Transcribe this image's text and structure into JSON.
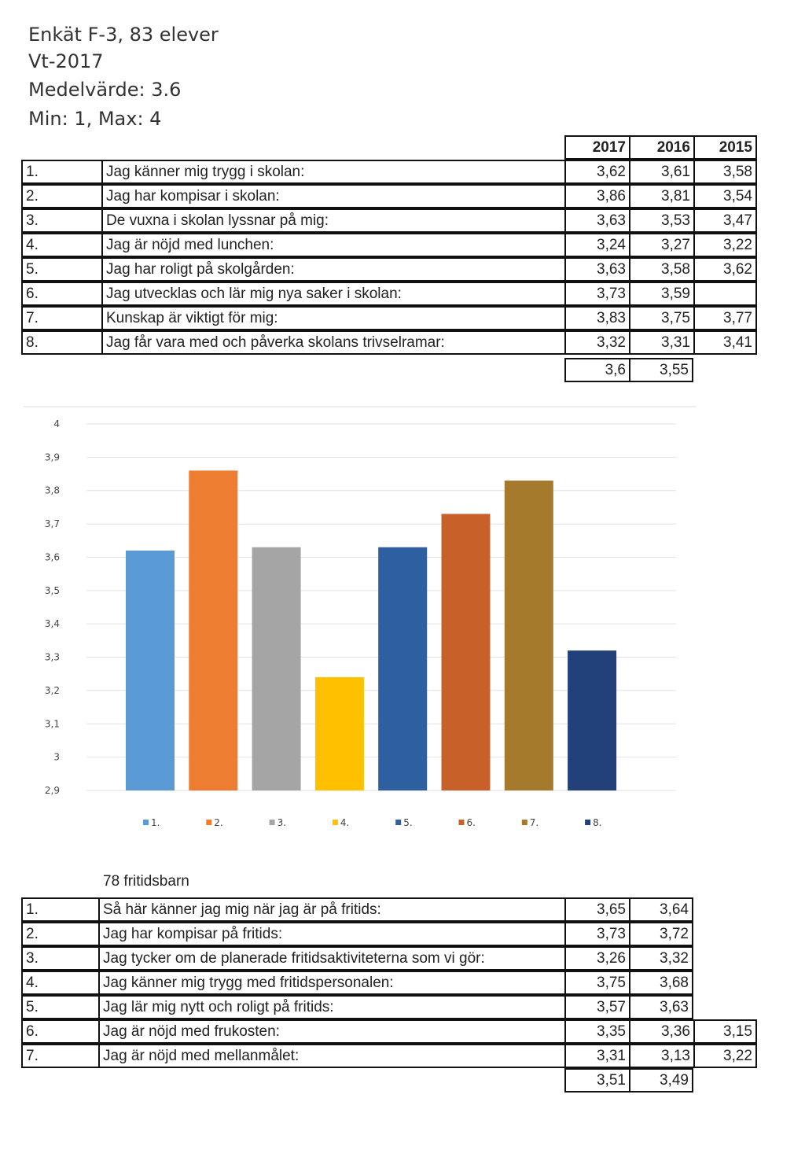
{
  "header": {
    "line1": "Enkät F-3, 83 elever",
    "line2": "Vt-2017",
    "line3": "Medelvärde: 3.6",
    "line4": "Min: 1, Max: 4"
  },
  "table1": {
    "years": [
      "2017",
      "2016",
      "2015"
    ],
    "rows": [
      {
        "n": "1.",
        "q": "Jag känner mig trygg i skolan:",
        "v2017": "3,62",
        "v2016": "3,61",
        "v2015": "3,58"
      },
      {
        "n": "2.",
        "q": "Jag har kompisar i skolan:",
        "v2017": "3,86",
        "v2016": "3,81",
        "v2015": "3,54"
      },
      {
        "n": "3.",
        "q": "De vuxna i skolan lyssnar på mig:",
        "v2017": "3,63",
        "v2016": "3,53",
        "v2015": "3,47"
      },
      {
        "n": "4.",
        "q": "Jag är nöjd med lunchen:",
        "v2017": "3,24",
        "v2016": "3,27",
        "v2015": "3,22"
      },
      {
        "n": "5.",
        "q": "Jag har roligt på skolgården:",
        "v2017": "3,63",
        "v2016": "3,58",
        "v2015": "3,62"
      },
      {
        "n": "6.",
        "q": "Jag utvecklas och lär mig nya saker i skolan:",
        "v2017": "3,73",
        "v2016": "3,59",
        "v2015": ""
      },
      {
        "n": "7.",
        "q": "Kunskap är viktigt för mig:",
        "v2017": "3,83",
        "v2016": "3,75",
        "v2015": "3,77"
      },
      {
        "n": "8.",
        "q": "Jag får vara med och påverka skolans trivselramar:",
        "v2017": "3,32",
        "v2016": "3,31",
        "v2015": "3,41"
      }
    ],
    "avg": {
      "v2017": "3,6",
      "v2016": "3,55"
    }
  },
  "chart_data": {
    "type": "bar",
    "categories": [
      "1.",
      "2.",
      "3.",
      "4.",
      "5.",
      "6.",
      "7.",
      "8."
    ],
    "values": [
      3.62,
      3.86,
      3.63,
      3.24,
      3.63,
      3.73,
      3.83,
      3.32
    ],
    "colors": [
      "#5b9bd5",
      "#ed7d31",
      "#a5a5a5",
      "#ffc000",
      "#2e5fa0",
      "#c8602a",
      "#a67a2c",
      "#22407a"
    ],
    "ylim": [
      2.9,
      4
    ],
    "yticks": [
      "4",
      "3,9",
      "3,8",
      "3,7",
      "3,6",
      "3,5",
      "3,4",
      "3,3",
      "3,2",
      "3,1",
      "3",
      "2,9"
    ],
    "legend_position": "bottom",
    "grid": true
  },
  "table2": {
    "caption": "78 fritidsbarn",
    "rows": [
      {
        "n": "1.",
        "q": "Så här känner jag mig när jag är på fritids:",
        "a": "3,65",
        "b": "3,64",
        "c": ""
      },
      {
        "n": "2.",
        "q": "Jag har kompisar på fritids:",
        "a": "3,73",
        "b": "3,72",
        "c": ""
      },
      {
        "n": "3.",
        "q": "Jag tycker om de planerade fritidsaktiviteterna som vi gör:",
        "a": "3,26",
        "b": "3,32",
        "c": ""
      },
      {
        "n": "4.",
        "q": "Jag känner mig trygg med fritidspersonalen:",
        "a": "3,75",
        "b": "3,68",
        "c": ""
      },
      {
        "n": "5.",
        "q": "Jag lär mig nytt och roligt på fritids:",
        "a": "3,57",
        "b": "3,63",
        "c": ""
      },
      {
        "n": "6.",
        "q": "Jag är nöjd med frukosten:",
        "a": "3,35",
        "b": "3,36",
        "c": "3,15"
      },
      {
        "n": "7.",
        "q": "Jag är nöjd med mellanmålet:",
        "a": "3,31",
        "b": "3,13",
        "c": "3,22"
      }
    ],
    "avg": {
      "a": "3,51",
      "b": "3,49"
    }
  }
}
